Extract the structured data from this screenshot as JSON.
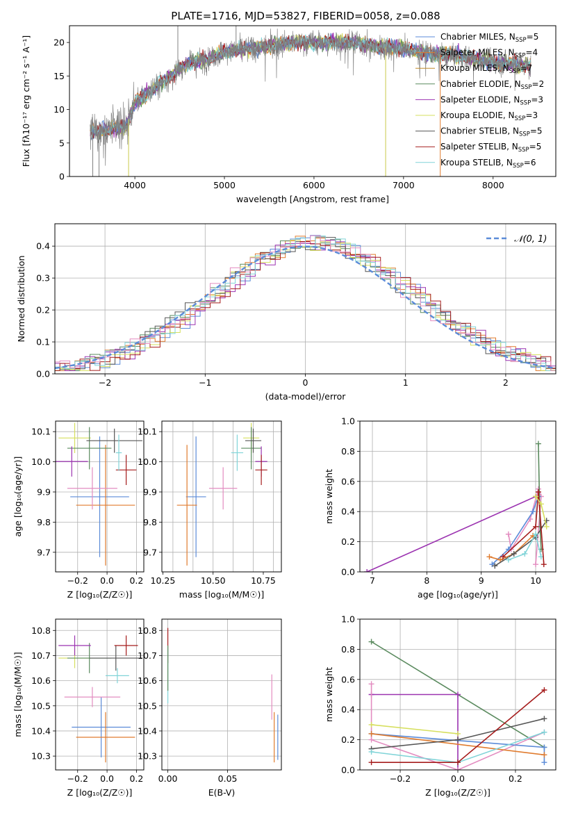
{
  "figure_title": "PLATE=1716, MJD=53827, FIBERID=0058, z=0.088",
  "colors": {
    "Chabrier MILES": "#5b8bd8",
    "Salpeter MILES": "#e07b2e",
    "Kroupa MILES": "#c08a2a",
    "Chabrier ELODIE": "#5a8a5e",
    "Salpeter ELODIE": "#9b32b0",
    "Kroupa ELODIE": "#d6df5e",
    "Chabrier STELIB": "#555555",
    "Salpeter STELIB": "#a51c1c",
    "Kroupa STELIB": "#80d4d8",
    "pink": "#e38cc0",
    "gauss": "#5b8bd8"
  },
  "chart_data": [
    {
      "type": "line",
      "title": "PLATE=1716, MJD=53827, FIBERID=0058, z=0.088",
      "xlabel": "wavelength [Angstrom, rest frame]",
      "ylabel": "Flux [fλ10⁻¹⁷ erg cm⁻² s⁻¹ A⁻¹]",
      "xlim": [
        3270,
        8700
      ],
      "ylim": [
        0,
        22.5
      ],
      "xticks": [
        4000,
        5000,
        6000,
        7000,
        8000
      ],
      "yticks": [
        0,
        5,
        10,
        15,
        20
      ],
      "legend_position": "upper-right",
      "legend": [
        {
          "base": "Chabrier MILES, N",
          "sub": "SSP",
          "tail": "=5"
        },
        {
          "base": "Salpeter MILES, N",
          "sub": "SSP",
          "tail": "=4"
        },
        {
          "base": "Kroupa MILES, N",
          "sub": "SSP",
          "tail": "=7"
        },
        {
          "base": "Chabrier ELODIE, N",
          "sub": "SSP",
          "tail": "=2"
        },
        {
          "base": "Salpeter ELODIE, N",
          "sub": "SSP",
          "tail": "=3"
        },
        {
          "base": "Kroupa ELODIE, N",
          "sub": "SSP",
          "tail": "=3"
        },
        {
          "base": "Chabrier STELIB, N",
          "sub": "SSP",
          "tail": "=5"
        },
        {
          "base": "Salpeter STELIB, N",
          "sub": "SSP",
          "tail": "=5"
        },
        {
          "base": "Kroupa STELIB, N",
          "sub": "SSP",
          "tail": "=6"
        }
      ],
      "spectrum_trend": {
        "x": [
          3500,
          3700,
          3900,
          4000,
          4200,
          4400,
          4600,
          4800,
          5000,
          5200,
          5500,
          5800,
          6100,
          6400,
          6700,
          7000,
          7200,
          7400,
          7600,
          7800,
          8000,
          8200,
          8400
        ],
        "y": [
          6.5,
          7.0,
          7.5,
          11.0,
          13.0,
          15.0,
          17.0,
          17.5,
          18.5,
          19.0,
          19.5,
          20.0,
          20.0,
          20.0,
          19.5,
          19.0,
          18.5,
          18.2,
          18.0,
          17.5,
          17.0,
          16.8,
          16.5
        ]
      }
    },
    {
      "type": "histogram",
      "xlabel": "(data-model)/error",
      "ylabel": "Normed distribution",
      "xlim": [
        -2.5,
        2.5
      ],
      "ylim": [
        0,
        0.47
      ],
      "xticks": [
        -2,
        -1,
        0,
        1,
        2
      ],
      "yticks": [
        0.0,
        0.1,
        0.2,
        0.3,
        0.4
      ],
      "legend_position": "upper-right",
      "legend": "𝒩(0, 1)",
      "bin_width": 0.1,
      "gauss_mu": 0,
      "gauss_sigma": 1
    },
    {
      "type": "scatter",
      "name": "age vs Z",
      "xlabel": "Z [log₁₀(Z/Z☉)]",
      "ylabel": "age  [log₁₀(age/yr)]",
      "xlim": [
        -0.35,
        0.25
      ],
      "ylim": [
        9.635,
        10.135
      ],
      "xticks": [
        -0.2,
        0.0,
        0.2
      ],
      "yticks": [
        9.7,
        9.8,
        9.9,
        10.0,
        10.1
      ],
      "points": [
        {
          "model": "Chabrier MILES",
          "x": -0.05,
          "y": 9.884,
          "xerr": 0.2,
          "yerr": 0.2
        },
        {
          "model": "Salpeter MILES",
          "x": -0.01,
          "y": 9.856,
          "xerr": 0.2,
          "yerr": 0.2
        },
        {
          "model": "Kroupa ELODIE",
          "x": -0.22,
          "y": 10.079,
          "xerr": 0.11,
          "yerr": 0.05
        },
        {
          "model": "Chabrier ELODIE",
          "x": -0.12,
          "y": 10.045,
          "xerr": 0.15,
          "yerr": 0.07
        },
        {
          "model": "Salpeter ELODIE",
          "x": -0.24,
          "y": 10.001,
          "xerr": 0.11,
          "yerr": 0.05
        },
        {
          "model": "Chabrier STELIB",
          "x": 0.05,
          "y": 10.07,
          "xerr": 0.19,
          "yerr": 0.04
        },
        {
          "model": "Salpeter STELIB",
          "x": 0.13,
          "y": 9.973,
          "xerr": 0.07,
          "yerr": 0.05
        },
        {
          "model": "Kroupa STELIB",
          "x": 0.08,
          "y": 10.03,
          "xerr": 0.02,
          "yerr": 0.06
        },
        {
          "model": "pink",
          "x": -0.1,
          "y": 9.912,
          "xerr": 0.17,
          "yerr": 0.07
        }
      ]
    },
    {
      "type": "scatter",
      "name": "age vs mass",
      "xlabel": "mass [log₁₀(M/M☉)]",
      "ylabel": "",
      "xlim": [
        10.245,
        10.84
      ],
      "ylim": [
        9.635,
        10.135
      ],
      "xticks": [
        10.3,
        10.4,
        10.5,
        10.6,
        10.7,
        10.8
      ],
      "tick_labels": [
        "10.25",
        "10.50",
        "10.75"
      ],
      "tick_label_values": [
        10.25,
        10.5,
        10.75
      ],
      "yticks": [
        9.7,
        9.8,
        9.9,
        10.0,
        10.1
      ],
      "points": [
        {
          "model": "Chabrier MILES",
          "x": 10.415,
          "y": 9.884,
          "xerr": 0.05,
          "yerr": 0.2
        },
        {
          "model": "Salpeter MILES",
          "x": 10.37,
          "y": 9.856,
          "xerr": 0.05,
          "yerr": 0.2
        },
        {
          "model": "Kroupa ELODIE",
          "x": 10.69,
          "y": 10.079,
          "xerr": 0.04,
          "yerr": 0.05
        },
        {
          "model": "Chabrier ELODIE",
          "x": 10.69,
          "y": 10.045,
          "xerr": 0.05,
          "yerr": 0.07
        },
        {
          "model": "Salpeter ELODIE",
          "x": 10.74,
          "y": 10.001,
          "xerr": 0.03,
          "yerr": 0.05
        },
        {
          "model": "Chabrier STELIB",
          "x": 10.7,
          "y": 10.07,
          "xerr": 0.04,
          "yerr": 0.04
        },
        {
          "model": "Salpeter STELIB",
          "x": 10.74,
          "y": 9.973,
          "xerr": 0.03,
          "yerr": 0.05
        },
        {
          "model": "Kroupa STELIB",
          "x": 10.62,
          "y": 10.03,
          "xerr": 0.03,
          "yerr": 0.06
        },
        {
          "model": "pink",
          "x": 10.55,
          "y": 9.912,
          "xerr": 0.07,
          "yerr": 0.07
        }
      ]
    },
    {
      "type": "line",
      "name": "mass weight vs age",
      "xlabel": "age  [log₁₀(age/yr)]",
      "ylabel": "mass weight",
      "xlim": [
        6.77,
        10.37
      ],
      "ylim": [
        0,
        1.0
      ],
      "xticks": [
        7,
        8,
        9,
        10
      ],
      "yticks": [
        0.0,
        0.2,
        0.4,
        0.6,
        0.8,
        1.0
      ],
      "series": [
        {
          "model": "Salpeter ELODIE",
          "x": [
            6.9,
            10.0,
            10.05
          ],
          "y": [
            0.0,
            0.5,
            0.5
          ]
        },
        {
          "model": "pink",
          "x": [
            9.5,
            9.55,
            9.9,
            10.05,
            10.1,
            10.0
          ],
          "y": [
            0.25,
            0.15,
            0.35,
            0.55,
            0.5,
            0.05
          ]
        },
        {
          "model": "Chabrier MILES",
          "x": [
            9.2,
            9.5,
            9.95,
            10.05
          ],
          "y": [
            0.05,
            0.15,
            0.4,
            0.5
          ]
        },
        {
          "model": "Chabrier ELODIE",
          "x": [
            10.05,
            10.08,
            10.1
          ],
          "y": [
            0.85,
            0.3,
            0.15
          ]
        },
        {
          "model": "Salpeter MILES",
          "x": [
            9.15,
            9.35,
            9.6,
            9.95
          ],
          "y": [
            0.1,
            0.08,
            0.12,
            0.24
          ]
        },
        {
          "model": "Chabrier STELIB",
          "x": [
            9.25,
            9.6,
            10.0,
            10.2
          ],
          "y": [
            0.04,
            0.12,
            0.23,
            0.34
          ]
        },
        {
          "model": "Kroupa STELIB",
          "x": [
            9.5,
            9.8,
            10.0,
            10.1
          ],
          "y": [
            0.08,
            0.12,
            0.25,
            0.1
          ]
        },
        {
          "model": "Salpeter STELIB",
          "x": [
            9.4,
            10.0,
            10.05,
            10.15
          ],
          "y": [
            0.1,
            0.3,
            0.53,
            0.05
          ]
        },
        {
          "model": "Kroupa ELODIE",
          "x": [
            10.0,
            10.1,
            10.2
          ],
          "y": [
            0.5,
            0.45,
            0.3
          ]
        }
      ]
    },
    {
      "type": "scatter",
      "name": "mass vs Z",
      "xlabel": "Z [log₁₀(Z/Z☉)]",
      "ylabel": "mass [log₁₀(M/M☉)]",
      "xlim": [
        -0.35,
        0.25
      ],
      "ylim": [
        10.245,
        10.845
      ],
      "xticks": [
        -0.2,
        0.0,
        0.2
      ],
      "yticks": [
        10.3,
        10.4,
        10.5,
        10.6,
        10.7,
        10.8
      ],
      "points": [
        {
          "model": "Chabrier MILES",
          "x": -0.04,
          "y": 10.415,
          "xerr": 0.2,
          "yerr": 0.12
        },
        {
          "model": "Salpeter MILES",
          "x": -0.01,
          "y": 10.375,
          "xerr": 0.2,
          "yerr": 0.1
        },
        {
          "model": "Kroupa ELODIE",
          "x": -0.22,
          "y": 10.69,
          "xerr": 0.11,
          "yerr": 0.04
        },
        {
          "model": "Chabrier ELODIE",
          "x": -0.12,
          "y": 10.69,
          "xerr": 0.15,
          "yerr": 0.06
        },
        {
          "model": "Salpeter ELODIE",
          "x": -0.22,
          "y": 10.74,
          "xerr": 0.11,
          "yerr": 0.04
        },
        {
          "model": "Chabrier STELIB",
          "x": 0.06,
          "y": 10.69,
          "xerr": 0.18,
          "yerr": 0.05
        },
        {
          "model": "Salpeter STELIB",
          "x": 0.13,
          "y": 10.74,
          "xerr": 0.08,
          "yerr": 0.04
        },
        {
          "model": "Kroupa STELIB",
          "x": 0.07,
          "y": 10.62,
          "xerr": 0.08,
          "yerr": 0.03
        },
        {
          "model": "pink",
          "x": -0.1,
          "y": 10.535,
          "xerr": 0.19,
          "yerr": 0.04
        }
      ]
    },
    {
      "type": "scatter",
      "name": "mass vs E(B-V)",
      "xlabel": "E(B-V)",
      "ylabel": "",
      "xlim": [
        -0.005,
        0.095
      ],
      "ylim": [
        10.245,
        10.845
      ],
      "xticks": [
        0.0,
        0.05
      ],
      "yticks": [
        10.3,
        10.4,
        10.5,
        10.6,
        10.7,
        10.8
      ],
      "points": [
        {
          "model": "Salpeter STELIB",
          "x": 0.0,
          "y": 10.74,
          "xerr": 0,
          "yerr": 0.07
        },
        {
          "model": "Kroupa STELIB",
          "x": 0.0,
          "y": 10.62,
          "xerr": 0,
          "yerr": 0.11
        },
        {
          "model": "Chabrier ELODIE",
          "x": 0.0,
          "y": 10.65,
          "xerr": 0,
          "yerr": 0.09
        },
        {
          "model": "pink",
          "x": 0.087,
          "y": 10.535,
          "xerr": 0,
          "yerr": 0.09
        },
        {
          "model": "Salpeter MILES",
          "x": 0.089,
          "y": 10.375,
          "xerr": 0,
          "yerr": 0.1
        },
        {
          "model": "Chabrier MILES",
          "x": 0.092,
          "y": 10.375,
          "xerr": 0,
          "yerr": 0.09
        }
      ]
    },
    {
      "type": "line",
      "name": "mass weight vs Z",
      "xlabel": "Z [log₁₀(Z/Z☉)]",
      "ylabel": "mass weight",
      "xlim": [
        -0.34,
        0.34
      ],
      "ylim": [
        0,
        1.0
      ],
      "xticks": [
        -0.2,
        0.0,
        0.2
      ],
      "yticks": [
        0.0,
        0.2,
        0.4,
        0.6,
        0.8,
        1.0
      ],
      "series": [
        {
          "model": "Chabrier ELODIE",
          "x": [
            -0.3,
            0.3
          ],
          "y": [
            0.85,
            0.15
          ]
        },
        {
          "model": "Salpeter ELODIE",
          "x": [
            -0.3,
            0.0,
            0.0
          ],
          "y": [
            0.5,
            0.5,
            0.0
          ]
        },
        {
          "model": "pink",
          "x": [
            -0.3,
            -0.3,
            0.0,
            0.3
          ],
          "y": [
            0.57,
            0.2,
            0.0,
            0.25
          ]
        },
        {
          "model": "Kroupa ELODIE",
          "x": [
            -0.3,
            0.0
          ],
          "y": [
            0.3,
            0.24
          ]
        },
        {
          "model": "Chabrier MILES",
          "x": [
            -0.3,
            0.3,
            0.3
          ],
          "y": [
            0.24,
            0.15,
            0.05
          ]
        },
        {
          "model": "Salpeter MILES",
          "x": [
            -0.3,
            0.3
          ],
          "y": [
            0.24,
            0.1
          ]
        },
        {
          "model": "Chabrier STELIB",
          "x": [
            -0.3,
            0.0,
            0.3
          ],
          "y": [
            0.14,
            0.2,
            0.34
          ]
        },
        {
          "model": "Kroupa STELIB",
          "x": [
            -0.3,
            0.0,
            0.3
          ],
          "y": [
            0.12,
            0.05,
            0.25
          ]
        },
        {
          "model": "Salpeter STELIB",
          "x": [
            -0.3,
            0.0,
            0.3
          ],
          "y": [
            0.05,
            0.05,
            0.53
          ]
        }
      ]
    }
  ]
}
